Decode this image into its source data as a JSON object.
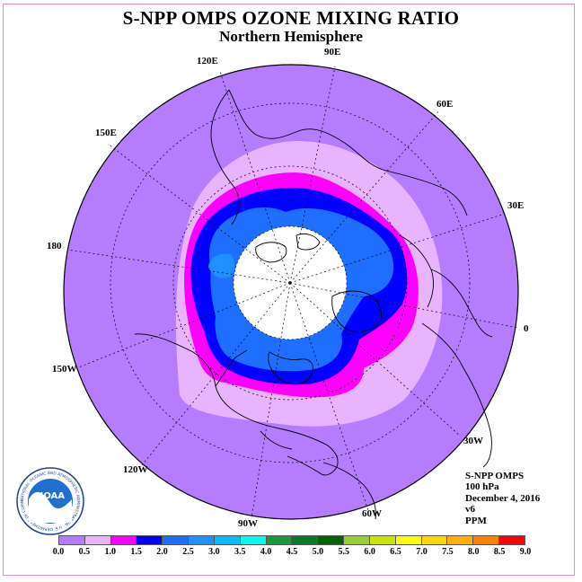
{
  "title": "S-NPP OMPS OZONE MIXING RATIO",
  "subtitle": "Northern Hemisphere",
  "longitude_labels": [
    "90E",
    "60E",
    "30E",
    "0",
    "30W",
    "60W",
    "90W",
    "120W",
    "150W",
    "180",
    "150E",
    "120E"
  ],
  "info": {
    "instrument": "S-NPP OMPS",
    "level": "100 hPa",
    "date": "December 4, 2016",
    "version": "v6",
    "units": "PPM"
  },
  "logo": {
    "text": "NOAA",
    "ring_text": "NATIONAL OCEANIC AND ATMOSPHERIC ADMINISTRATION · U.S. DEPARTMENT OF COMMERCE"
  },
  "colorbar": {
    "ticks": [
      "0.0",
      "0.5",
      "1.0",
      "1.5",
      "2.0",
      "2.5",
      "3.0",
      "3.5",
      "4.0",
      "4.5",
      "5.0",
      "5.5",
      "6.0",
      "6.5",
      "7.0",
      "7.5",
      "8.0",
      "8.5",
      "9.0"
    ],
    "colors": [
      "#b57cff",
      "#e8b4ff",
      "#ff00ff",
      "#0000ff",
      "#1e6fff",
      "#1e90ff",
      "#00bfff",
      "#00ffee",
      "#1a9a3a",
      "#0a7a2a",
      "#006400",
      "#9acd32",
      "#c8e600",
      "#ffff00",
      "#ffd700",
      "#ffb000",
      "#ff7f00",
      "#ff0000",
      "#8b5a2b"
    ]
  },
  "map_data": {
    "projection": "north polar stereographic",
    "hemisphere": "Northern",
    "field": "ozone mixing ratio",
    "pressure_level_hPa": 100,
    "units": "ppm",
    "missing_region": "polar night (no data)",
    "contour_bands_present": [
      "0.0-0.5",
      "0.5-1.0",
      "1.0-1.5",
      "1.5-2.0",
      "2.0-2.5",
      "2.5-3.0"
    ]
  }
}
